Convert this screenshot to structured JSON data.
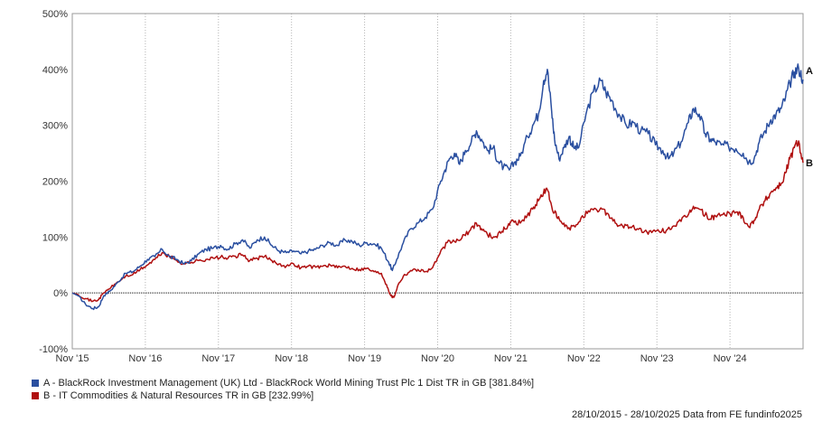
{
  "chart_data": {
    "type": "line",
    "ylim": [
      -100,
      500
    ],
    "y_ticks": [
      -100,
      0,
      100,
      200,
      300,
      400,
      500
    ],
    "y_tick_labels": [
      "-100%",
      "0%",
      "100%",
      "200%",
      "300%",
      "400%",
      "500%"
    ],
    "x_ticks": [
      "Nov '15",
      "Nov '16",
      "Nov '17",
      "Nov '18",
      "Nov '19",
      "Nov '20",
      "Nov '21",
      "Nov '22",
      "Nov '23",
      "Nov '24"
    ],
    "x_range": [
      2015.82,
      2025.82
    ],
    "grid": "vertical-dotted",
    "baseline": 0,
    "series": [
      {
        "name": "A - BlackRock Investment Management (UK) Ltd - BlackRock World Mining Trust Plc 1 Dist TR in GB [381.84%]",
        "end_label": "A",
        "color": "#2a4fa0",
        "points": [
          [
            2015.82,
            0
          ],
          [
            2015.9,
            -5
          ],
          [
            2016.0,
            -20
          ],
          [
            2016.1,
            -28
          ],
          [
            2016.18,
            -25
          ],
          [
            2016.25,
            -5
          ],
          [
            2016.35,
            5
          ],
          [
            2016.45,
            20
          ],
          [
            2016.55,
            35
          ],
          [
            2016.65,
            38
          ],
          [
            2016.75,
            48
          ],
          [
            2016.85,
            60
          ],
          [
            2016.95,
            65
          ],
          [
            2017.05,
            78
          ],
          [
            2017.15,
            65
          ],
          [
            2017.25,
            60
          ],
          [
            2017.35,
            52
          ],
          [
            2017.45,
            58
          ],
          [
            2017.55,
            70
          ],
          [
            2017.65,
            78
          ],
          [
            2017.75,
            80
          ],
          [
            2017.85,
            85
          ],
          [
            2017.95,
            78
          ],
          [
            2018.05,
            88
          ],
          [
            2018.15,
            95
          ],
          [
            2018.25,
            80
          ],
          [
            2018.35,
            95
          ],
          [
            2018.45,
            100
          ],
          [
            2018.55,
            85
          ],
          [
            2018.65,
            75
          ],
          [
            2018.75,
            72
          ],
          [
            2018.85,
            75
          ],
          [
            2018.95,
            70
          ],
          [
            2019.05,
            75
          ],
          [
            2019.15,
            78
          ],
          [
            2019.25,
            85
          ],
          [
            2019.35,
            90
          ],
          [
            2019.45,
            85
          ],
          [
            2019.55,
            95
          ],
          [
            2019.65,
            92
          ],
          [
            2019.75,
            85
          ],
          [
            2019.85,
            90
          ],
          [
            2019.95,
            88
          ],
          [
            2020.05,
            80
          ],
          [
            2020.15,
            55
          ],
          [
            2020.2,
            40
          ],
          [
            2020.26,
            60
          ],
          [
            2020.35,
            90
          ],
          [
            2020.45,
            115
          ],
          [
            2020.55,
            125
          ],
          [
            2020.65,
            135
          ],
          [
            2020.75,
            150
          ],
          [
            2020.85,
            195
          ],
          [
            2020.92,
            220
          ],
          [
            2020.98,
            240
          ],
          [
            2021.05,
            250
          ],
          [
            2021.12,
            230
          ],
          [
            2021.2,
            255
          ],
          [
            2021.28,
            270
          ],
          [
            2021.35,
            290
          ],
          [
            2021.42,
            275
          ],
          [
            2021.5,
            255
          ],
          [
            2021.58,
            260
          ],
          [
            2021.65,
            235
          ],
          [
            2021.72,
            225
          ],
          [
            2021.8,
            220
          ],
          [
            2021.88,
            235
          ],
          [
            2021.95,
            245
          ],
          [
            2022.05,
            280
          ],
          [
            2022.12,
            300
          ],
          [
            2022.2,
            320
          ],
          [
            2022.27,
            380
          ],
          [
            2022.32,
            400
          ],
          [
            2022.38,
            325
          ],
          [
            2022.42,
            275
          ],
          [
            2022.48,
            240
          ],
          [
            2022.55,
            260
          ],
          [
            2022.62,
            280
          ],
          [
            2022.68,
            260
          ],
          [
            2022.75,
            260
          ],
          [
            2022.85,
            320
          ],
          [
            2022.95,
            360
          ],
          [
            2023.05,
            380
          ],
          [
            2023.12,
            360
          ],
          [
            2023.2,
            345
          ],
          [
            2023.3,
            320
          ],
          [
            2023.4,
            300
          ],
          [
            2023.5,
            305
          ],
          [
            2023.6,
            290
          ],
          [
            2023.7,
            285
          ],
          [
            2023.8,
            265
          ],
          [
            2023.9,
            255
          ],
          [
            2023.98,
            240
          ],
          [
            2024.05,
            250
          ],
          [
            2024.15,
            270
          ],
          [
            2024.25,
            305
          ],
          [
            2024.32,
            330
          ],
          [
            2024.4,
            320
          ],
          [
            2024.48,
            285
          ],
          [
            2024.55,
            275
          ],
          [
            2024.62,
            270
          ],
          [
            2024.7,
            265
          ],
          [
            2024.8,
            262
          ],
          [
            2024.9,
            258
          ],
          [
            2025.0,
            250
          ],
          [
            2025.08,
            235
          ],
          [
            2025.15,
            240
          ],
          [
            2025.22,
            270
          ],
          [
            2025.3,
            290
          ],
          [
            2025.38,
            310
          ],
          [
            2025.45,
            320
          ],
          [
            2025.52,
            330
          ],
          [
            2025.58,
            350
          ],
          [
            2025.64,
            375
          ],
          [
            2025.7,
            395
          ],
          [
            2025.76,
            402
          ],
          [
            2025.82,
            382
          ]
        ]
      },
      {
        "name": "B - IT Commodities & Natural Resources TR in GB [232.99%]",
        "end_label": "B",
        "color": "#b01010",
        "points": [
          [
            2015.82,
            0
          ],
          [
            2015.9,
            -3
          ],
          [
            2016.0,
            -10
          ],
          [
            2016.1,
            -15
          ],
          [
            2016.18,
            -12
          ],
          [
            2016.25,
            0
          ],
          [
            2016.35,
            10
          ],
          [
            2016.45,
            20
          ],
          [
            2016.55,
            30
          ],
          [
            2016.65,
            33
          ],
          [
            2016.75,
            42
          ],
          [
            2016.85,
            50
          ],
          [
            2016.95,
            60
          ],
          [
            2017.05,
            72
          ],
          [
            2017.15,
            65
          ],
          [
            2017.25,
            58
          ],
          [
            2017.35,
            52
          ],
          [
            2017.45,
            55
          ],
          [
            2017.55,
            58
          ],
          [
            2017.65,
            60
          ],
          [
            2017.75,
            62
          ],
          [
            2017.85,
            64
          ],
          [
            2017.95,
            62
          ],
          [
            2018.05,
            66
          ],
          [
            2018.15,
            68
          ],
          [
            2018.25,
            58
          ],
          [
            2018.35,
            62
          ],
          [
            2018.45,
            65
          ],
          [
            2018.55,
            58
          ],
          [
            2018.65,
            52
          ],
          [
            2018.75,
            48
          ],
          [
            2018.85,
            52
          ],
          [
            2018.95,
            45
          ],
          [
            2019.05,
            48
          ],
          [
            2019.15,
            46
          ],
          [
            2019.25,
            48
          ],
          [
            2019.35,
            50
          ],
          [
            2019.45,
            45
          ],
          [
            2019.55,
            48
          ],
          [
            2019.65,
            44
          ],
          [
            2019.75,
            42
          ],
          [
            2019.85,
            44
          ],
          [
            2019.95,
            38
          ],
          [
            2020.05,
            35
          ],
          [
            2020.12,
            15
          ],
          [
            2020.18,
            -5
          ],
          [
            2020.22,
            -8
          ],
          [
            2020.28,
            15
          ],
          [
            2020.35,
            30
          ],
          [
            2020.45,
            40
          ],
          [
            2020.55,
            42
          ],
          [
            2020.65,
            38
          ],
          [
            2020.75,
            45
          ],
          [
            2020.85,
            70
          ],
          [
            2020.95,
            90
          ],
          [
            2021.05,
            92
          ],
          [
            2021.15,
            98
          ],
          [
            2021.25,
            110
          ],
          [
            2021.35,
            125
          ],
          [
            2021.42,
            115
          ],
          [
            2021.5,
            105
          ],
          [
            2021.6,
            100
          ],
          [
            2021.7,
            110
          ],
          [
            2021.78,
            120
          ],
          [
            2021.85,
            130
          ],
          [
            2021.95,
            125
          ],
          [
            2022.05,
            140
          ],
          [
            2022.12,
            150
          ],
          [
            2022.2,
            165
          ],
          [
            2022.27,
            180
          ],
          [
            2022.32,
            185
          ],
          [
            2022.38,
            155
          ],
          [
            2022.45,
            135
          ],
          [
            2022.52,
            125
          ],
          [
            2022.6,
            115
          ],
          [
            2022.7,
            118
          ],
          [
            2022.8,
            138
          ],
          [
            2022.9,
            145
          ],
          [
            2023.0,
            148
          ],
          [
            2023.08,
            150
          ],
          [
            2023.16,
            140
          ],
          [
            2023.25,
            125
          ],
          [
            2023.35,
            120
          ],
          [
            2023.45,
            118
          ],
          [
            2023.55,
            115
          ],
          [
            2023.65,
            110
          ],
          [
            2023.75,
            108
          ],
          [
            2023.85,
            110
          ],
          [
            2023.95,
            112
          ],
          [
            2024.05,
            120
          ],
          [
            2024.15,
            128
          ],
          [
            2024.25,
            140
          ],
          [
            2024.32,
            155
          ],
          [
            2024.4,
            150
          ],
          [
            2024.48,
            140
          ],
          [
            2024.55,
            132
          ],
          [
            2024.62,
            138
          ],
          [
            2024.72,
            140
          ],
          [
            2024.82,
            142
          ],
          [
            2024.92,
            145
          ],
          [
            2025.0,
            135
          ],
          [
            2025.08,
            118
          ],
          [
            2025.15,
            130
          ],
          [
            2025.22,
            150
          ],
          [
            2025.3,
            165
          ],
          [
            2025.38,
            180
          ],
          [
            2025.45,
            188
          ],
          [
            2025.52,
            195
          ],
          [
            2025.58,
            215
          ],
          [
            2025.64,
            240
          ],
          [
            2025.7,
            260
          ],
          [
            2025.76,
            272
          ],
          [
            2025.82,
            233
          ]
        ]
      }
    ],
    "legend_position": "bottom-left"
  },
  "footer": {
    "text": "28/10/2015 - 28/10/2025 Data from FE fundinfo2025"
  }
}
